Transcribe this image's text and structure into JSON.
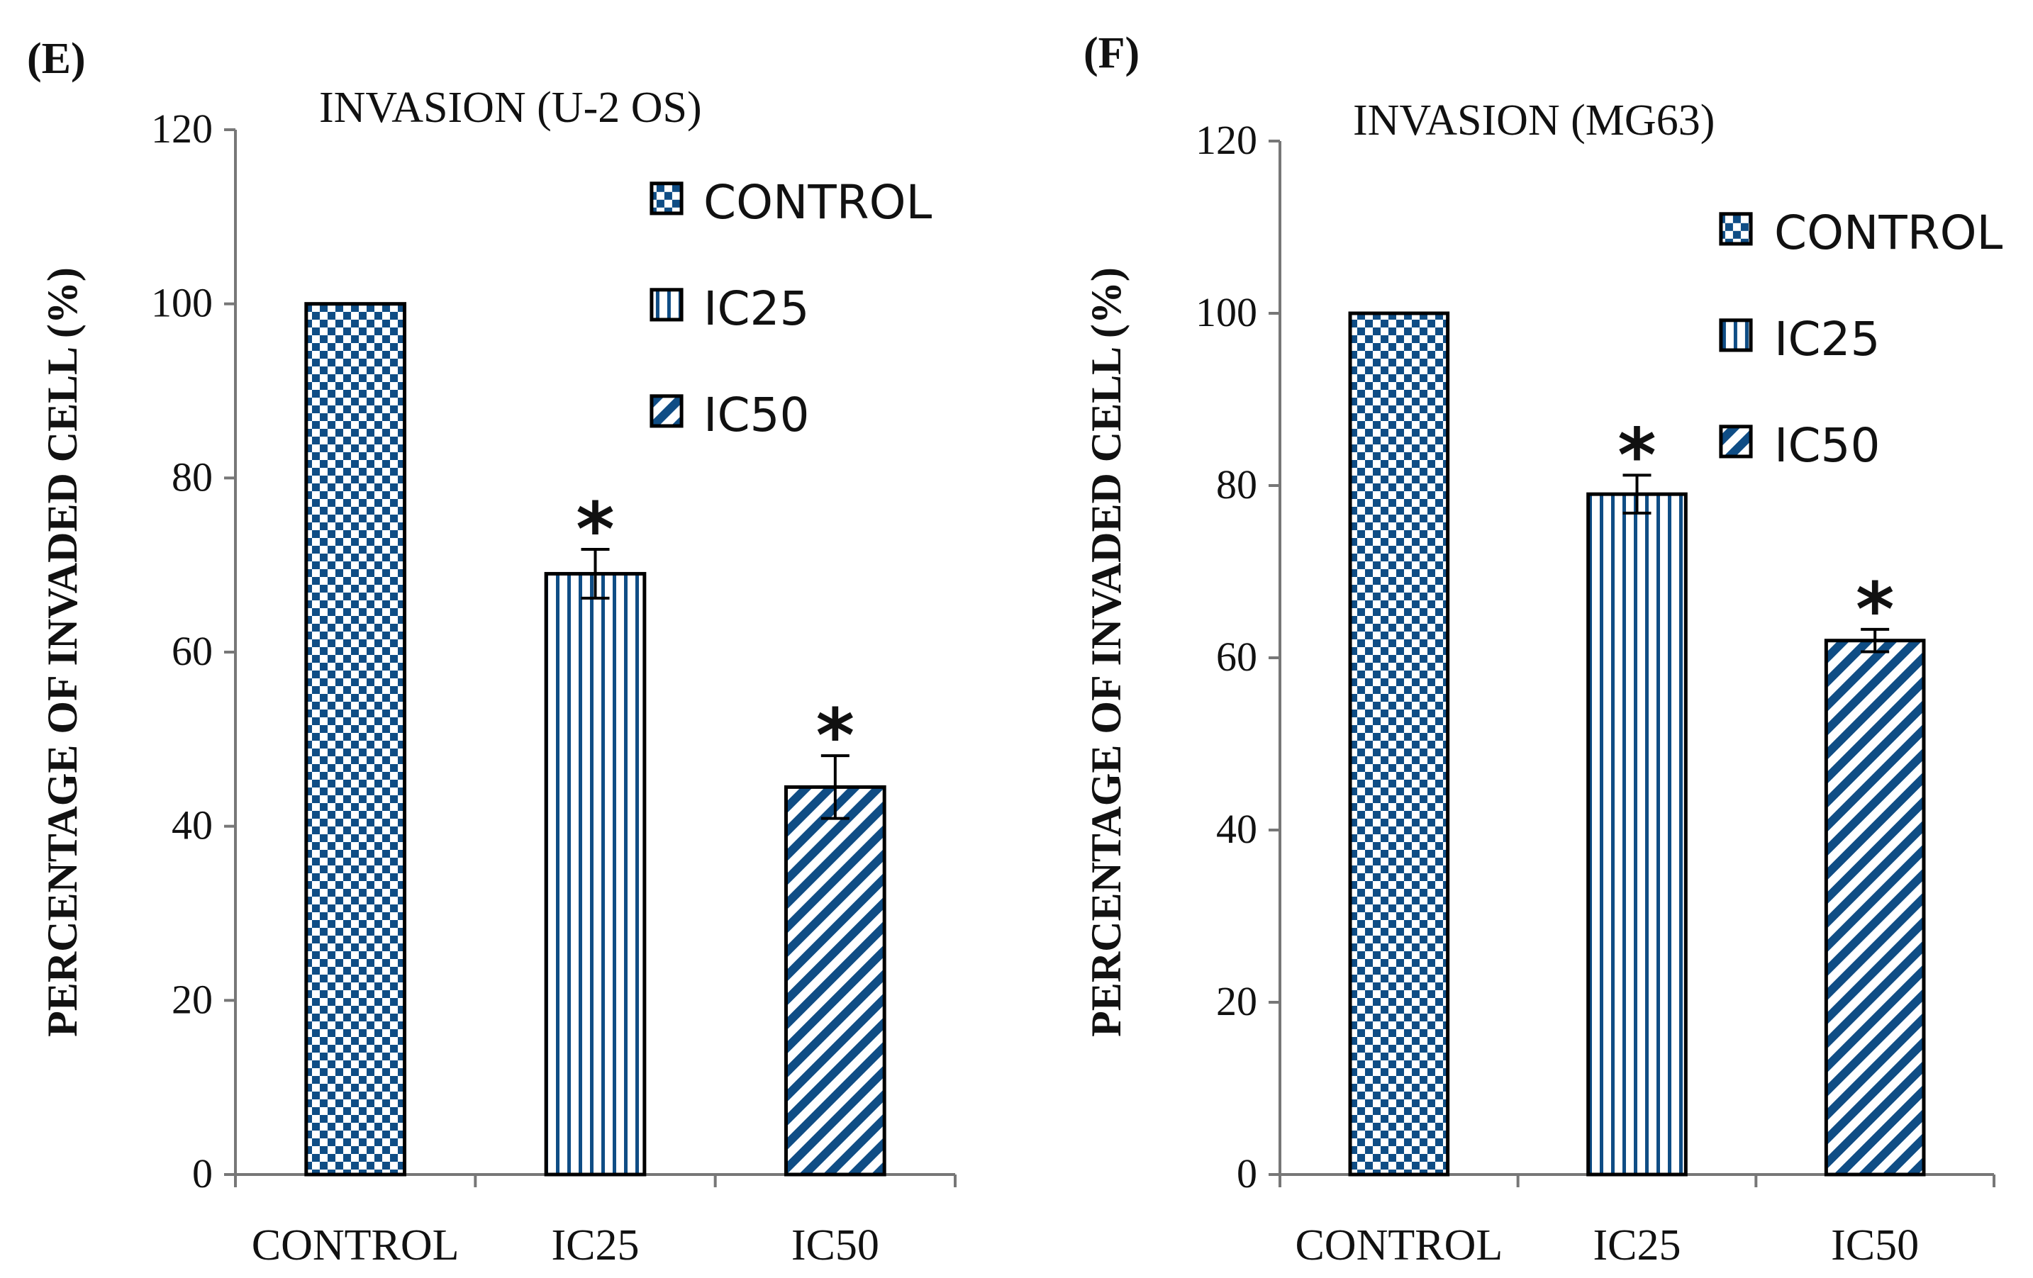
{
  "colors": {
    "bar_fill": "#0f4d85",
    "background": "#ffffff",
    "axis": "#777777",
    "edge": "#000000"
  },
  "chart_data": [
    {
      "type": "bar",
      "panel_label": "(E)",
      "title": "INVASION (U-2 OS)",
      "xlabel": "",
      "ylabel": "PERCENTAGE OF INVADED CELL (%)",
      "ylim": [
        0,
        120
      ],
      "yticks": [
        0,
        20,
        40,
        60,
        80,
        100,
        120
      ],
      "categories": [
        "CONTROL",
        "IC25",
        "IC50"
      ],
      "values": [
        100,
        69,
        44.5
      ],
      "errors": [
        0,
        2.8,
        3.6
      ],
      "significance": [
        "",
        "*",
        "*"
      ],
      "patterns": [
        "checker",
        "vertical",
        "diagonal"
      ],
      "legend": [
        "CONTROL",
        "IC25",
        "IC50"
      ],
      "legend_position": "top-right",
      "grid": false
    },
    {
      "type": "bar",
      "panel_label": "(F)",
      "title": "INVASION (MG63)",
      "xlabel": "",
      "ylabel": "PERCENTAGE OF INVADED CELL (%)",
      "ylim": [
        0,
        120
      ],
      "yticks": [
        0,
        20,
        40,
        60,
        80,
        100,
        120
      ],
      "categories": [
        "CONTROL",
        "IC25",
        "IC50"
      ],
      "values": [
        100,
        79,
        62
      ],
      "errors": [
        0,
        2.2,
        1.3
      ],
      "significance": [
        "",
        "*",
        "*"
      ],
      "patterns": [
        "checker",
        "vertical",
        "diagonal"
      ],
      "legend": [
        "CONTROL",
        "IC25",
        "IC50"
      ],
      "legend_position": "top-right",
      "grid": false
    }
  ]
}
